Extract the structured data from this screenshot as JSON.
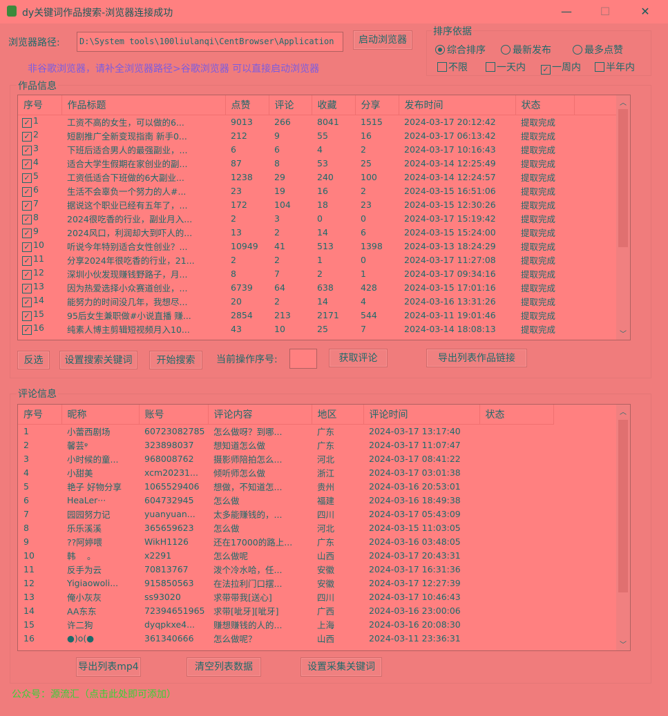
{
  "window": {
    "title": "dy关键词作品搜索-浏览器连接成功",
    "minimize": "—",
    "maximize": "☐",
    "close": "✕"
  },
  "browser": {
    "path_label": "浏览器路径:",
    "path_value": "D:\\System tools\\100liulanqi\\CentBrowser\\Application",
    "launch_button": "启动浏览器",
    "hint": "非谷歌浏览器，请补全浏览器路径>谷歌浏览器 可以直接启动浏览器"
  },
  "sort": {
    "label": "排序依据",
    "options": [
      {
        "label": "综合排序",
        "selected": true
      },
      {
        "label": "最新发布",
        "selected": false
      },
      {
        "label": "最多点赞",
        "selected": false
      }
    ],
    "time_filters": [
      {
        "label": "不限",
        "checked": false
      },
      {
        "label": "一天内",
        "checked": false
      },
      {
        "label": "一周内",
        "checked": true
      },
      {
        "label": "半年内",
        "checked": false
      }
    ]
  },
  "works": {
    "label": "作品信息",
    "columns": [
      "序号",
      "作品标题",
      "点赞",
      "评论",
      "收藏",
      "分享",
      "发布时间",
      "状态"
    ],
    "rows": [
      [
        "1",
        "工资不高的女生，可以做的6...",
        "9013",
        "266",
        "8041",
        "1515",
        "2024-03-17 20:12:42",
        "提取完成"
      ],
      [
        "2",
        "短剧推广全新变现指南 新手0...",
        "212",
        "9",
        "55",
        "16",
        "2024-03-17 06:13:42",
        "提取完成"
      ],
      [
        "3",
        "下班后适合男人的最强副业，...",
        "6",
        "6",
        "4",
        "2",
        "2024-03-17 10:16:43",
        "提取完成"
      ],
      [
        "4",
        "适合大学生假期在家创业的副...",
        "87",
        "8",
        "53",
        "25",
        "2024-03-14 12:25:49",
        "提取完成"
      ],
      [
        "5",
        "工资低适合下班做的6大副业...",
        "1238",
        "29",
        "240",
        "100",
        "2024-03-14 12:24:57",
        "提取完成"
      ],
      [
        "6",
        "生活不会辜负一个努力的人#...",
        "23",
        "19",
        "16",
        "2",
        "2024-03-15 16:51:06",
        "提取完成"
      ],
      [
        "7",
        "据说这个职业已经有五年了，...",
        "172",
        "104",
        "18",
        "23",
        "2024-03-15 12:30:26",
        "提取完成"
      ],
      [
        "8",
        "2024很吃香的行业，副业月入...",
        "2",
        "3",
        "0",
        "0",
        "2024-03-17 15:19:42",
        "提取完成"
      ],
      [
        "9",
        "2024风口，利润却大到吓人的...",
        "13",
        "2",
        "14",
        "6",
        "2024-03-15 15:24:00",
        "提取完成"
      ],
      [
        "10",
        "听说今年特别适合女性创业？...",
        "10949",
        "41",
        "513",
        "1398",
        "2024-03-13 18:24:29",
        "提取完成"
      ],
      [
        "11",
        "分享2024年很吃香的行业，21...",
        "2",
        "2",
        "1",
        "0",
        "2024-03-17 11:27:08",
        "提取完成"
      ],
      [
        "12",
        "深圳小伙发现赚钱野路子，月...",
        "8",
        "7",
        "2",
        "1",
        "2024-03-17 09:34:16",
        "提取完成"
      ],
      [
        "13",
        "因为热爱选择小众赛道创业，...",
        "6739",
        "64",
        "638",
        "428",
        "2024-03-15 17:01:16",
        "提取完成"
      ],
      [
        "14",
        "能努力的时间没几年，我想尽...",
        "20",
        "2",
        "14",
        "4",
        "2024-03-16 13:31:26",
        "提取完成"
      ],
      [
        "15",
        "95后女生兼职做#小说直播 赚...",
        "2854",
        "213",
        "2171",
        "544",
        "2024-03-11 19:01:46",
        "提取完成"
      ],
      [
        "16",
        "纯素人博主剪辑短视频月入10...",
        "43",
        "10",
        "25",
        "7",
        "2024-03-14 18:08:13",
        "提取完成"
      ]
    ]
  },
  "actions": {
    "invert": "反选",
    "set_keywords": "设置搜索关键词",
    "start_search": "开始搜索",
    "current_label": "当前操作序号:",
    "current_value": "",
    "get_comments": "获取评论",
    "export_links": "导出列表作品链接"
  },
  "comments": {
    "label": "评论信息",
    "columns": [
      "序号",
      "昵称",
      "账号",
      "评论内容",
      "地区",
      "评论时间",
      "状态"
    ],
    "rows": [
      [
        "1",
        "小蕾西剧场",
        "60723082785",
        "怎么做呀？到哪...",
        "广东",
        "2024-03-17 13:17:40",
        ""
      ],
      [
        "2",
        "馨芸ᵠ",
        "323898037",
        "想知道怎么做",
        "广东",
        "2024-03-17 11:07:47",
        ""
      ],
      [
        "3",
        "小时候的童...",
        "968008762",
        "摄影师陪拍怎么...",
        "河北",
        "2024-03-17 08:41:22",
        ""
      ],
      [
        "4",
        "小甜美",
        "xcm20231...",
        "倾听师怎么做",
        "浙江",
        "2024-03-17 03:01:38",
        ""
      ],
      [
        "5",
        "艳子 好物分享",
        "1065529406",
        "想做，不知道怎...",
        "贵州",
        "2024-03-16 20:53:01",
        ""
      ],
      [
        "6",
        "HeaLer···",
        "604732945",
        "怎么做",
        "福建",
        "2024-03-16 18:49:38",
        ""
      ],
      [
        "7",
        "园园努力记",
        "yuanyuan...",
        "太多能赚钱的，...",
        "四川",
        "2024-03-17 05:43:09",
        ""
      ],
      [
        "8",
        "乐乐溪溪",
        "365659623",
        "怎么做",
        "河北",
        "2024-03-15 11:03:05",
        ""
      ],
      [
        "9",
        "??阿婷喂",
        "WikH1126",
        "还在17000的路上...",
        "广东",
        "2024-03-16 03:48:05",
        ""
      ],
      [
        "10",
        "韩　 。",
        "x2291",
        "怎么做呢",
        "山西",
        "2024-03-17 20:43:31",
        ""
      ],
      [
        "11",
        "反手为云",
        "70813767",
        "泼个冷水哈，任...",
        "安徽",
        "2024-03-17 16:31:36",
        ""
      ],
      [
        "12",
        "Yigiaowoli...",
        "915850563",
        "在法拉利门口摆...",
        "安徽",
        "2024-03-17 12:27:39",
        ""
      ],
      [
        "13",
        "俺小灰灰",
        "ss93020",
        "求带带我[送心]",
        "四川",
        "2024-03-17 10:46:43",
        ""
      ],
      [
        "14",
        "AA东东",
        "72394651965",
        "求带[呲牙][呲牙]",
        "广西",
        "2024-03-16 23:00:06",
        ""
      ],
      [
        "15",
        "许二狗",
        "dyqpkxe4...",
        "赚想赚钱的人的...",
        "上海",
        "2024-03-16 20:08:30",
        ""
      ],
      [
        "16",
        "●)o(●",
        "361340666",
        "怎么做呢？",
        "山西",
        "2024-03-11 23:36:31",
        ""
      ]
    ]
  },
  "bottom": {
    "export_mp4": "导出列表mp4",
    "clear": "清空列表数据",
    "set_collect_keywords": "设置采集关键词",
    "footer": "公众号：源流汇（点击此处即可添加）"
  }
}
